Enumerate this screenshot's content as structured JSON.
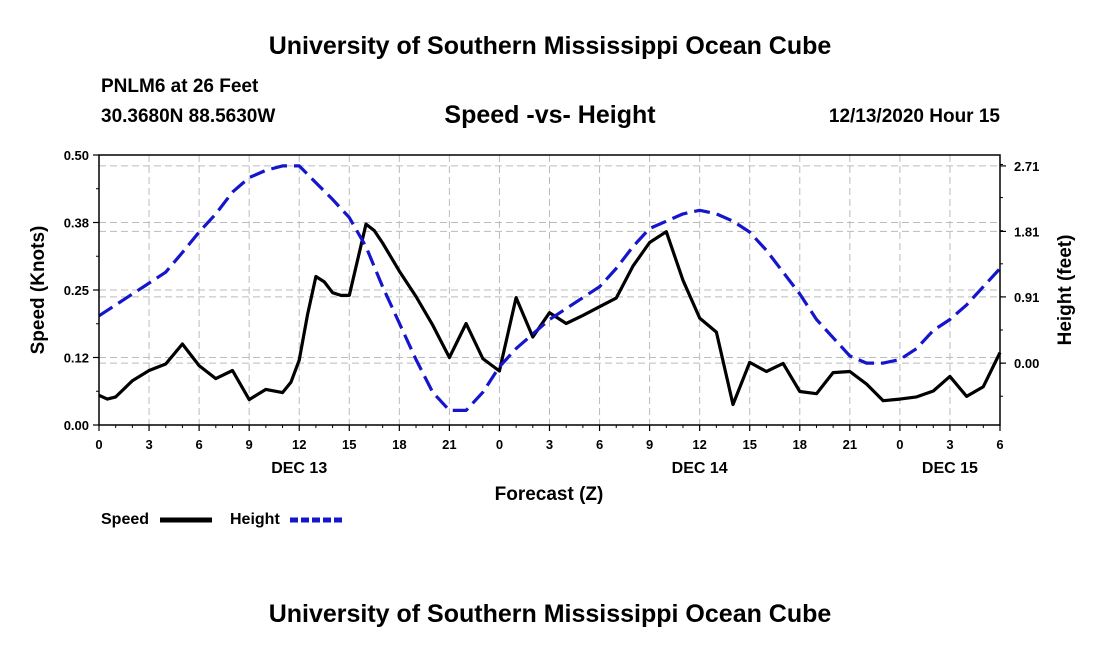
{
  "header": {
    "title_top": "University of Southern Mississippi Ocean Cube",
    "title_bottom": "University of Southern Mississippi Ocean Cube",
    "station_name": "PNLM6 at 26 Feet",
    "station_coords": "30.3680N 88.5630W",
    "chart_title": "Speed -vs- Height",
    "date": "12/13/2020 Hour 15"
  },
  "colors": {
    "speed": "#000000",
    "height": "#1515cc",
    "grid": "#bbbbbb"
  },
  "chart_data": {
    "type": "line",
    "title": "Speed -vs- Height",
    "xlabel": "Forecast (Z)",
    "ylabel": "Speed (Knots)",
    "y2label": "Height (feet)",
    "xlim": [
      0,
      54
    ],
    "ylim": [
      0,
      0.5
    ],
    "y2lim": [
      -0.85,
      2.86
    ],
    "grid": true,
    "x_tick_positions": [
      0,
      3,
      6,
      9,
      12,
      15,
      18,
      21,
      24,
      27,
      30,
      33,
      36,
      39,
      42,
      45,
      48,
      51,
      54
    ],
    "x_tick_labels": [
      "0",
      "3",
      "6",
      "9",
      "12",
      "15",
      "18",
      "21",
      "0",
      "3",
      "6",
      "9",
      "12",
      "15",
      "18",
      "21",
      "0",
      "3",
      "6"
    ],
    "date_labels": [
      {
        "x": 12,
        "label": "DEC 13"
      },
      {
        "x": 36,
        "label": "DEC 14"
      },
      {
        "x": 51,
        "label": "DEC 15"
      }
    ],
    "y_ticks": [
      0,
      0.125,
      0.25,
      0.375,
      0.5
    ],
    "y_tick_labels": [
      "0.00",
      "0.12",
      "0.25",
      "0.38",
      "0.50"
    ],
    "y2_ticks": [
      0,
      0.91,
      1.81,
      2.71
    ],
    "y2_tick_labels": [
      "0.00",
      "0.91",
      "1.81",
      "2.71"
    ],
    "legend": {
      "position": "bottom-left",
      "entries": [
        "Speed",
        "Height"
      ]
    },
    "series": [
      {
        "name": "Speed",
        "axis": "left",
        "style": "solid",
        "x": [
          0,
          0.5,
          1,
          2,
          3,
          4,
          5,
          6,
          7,
          8,
          9,
          10,
          11,
          11.5,
          12,
          12.5,
          13,
          13.5,
          14,
          14.5,
          15,
          16,
          16.5,
          17,
          18,
          19,
          20,
          21,
          22,
          23,
          24,
          25,
          26,
          27,
          28,
          29,
          30,
          31,
          32,
          33,
          34,
          35,
          36,
          37,
          38,
          39,
          40,
          41,
          42,
          43,
          44,
          45,
          46,
          47,
          48,
          49,
          50,
          51,
          52,
          53,
          54
        ],
        "values": [
          0.055,
          0.048,
          0.052,
          0.082,
          0.101,
          0.113,
          0.15,
          0.11,
          0.086,
          0.101,
          0.047,
          0.066,
          0.06,
          0.079,
          0.12,
          0.205,
          0.275,
          0.265,
          0.245,
          0.24,
          0.24,
          0.372,
          0.36,
          0.337,
          0.285,
          0.238,
          0.185,
          0.125,
          0.188,
          0.123,
          0.1,
          0.236,
          0.163,
          0.208,
          0.188,
          0.203,
          0.219,
          0.235,
          0.294,
          0.338,
          0.358,
          0.268,
          0.198,
          0.172,
          0.038,
          0.116,
          0.099,
          0.114,
          0.062,
          0.058,
          0.097,
          0.099,
          0.076,
          0.045,
          0.048,
          0.052,
          0.063,
          0.09,
          0.053,
          0.071,
          0.134
        ]
      },
      {
        "name": "Height",
        "axis": "right",
        "style": "dashed",
        "x": [
          0,
          1,
          2,
          3,
          4,
          5,
          6,
          7,
          8,
          9,
          10,
          11,
          12,
          13,
          14,
          15,
          16,
          17,
          18,
          19,
          20,
          21,
          22,
          23,
          24,
          25,
          26,
          27,
          28,
          29,
          30,
          31,
          32,
          33,
          34,
          35,
          36,
          37,
          38,
          39,
          40,
          41,
          42,
          43,
          44,
          45,
          46,
          47,
          48,
          49,
          50,
          51,
          52,
          53,
          54
        ],
        "values": [
          0.65,
          0.8,
          0.95,
          1.1,
          1.25,
          1.52,
          1.8,
          2.05,
          2.35,
          2.55,
          2.65,
          2.71,
          2.71,
          2.48,
          2.25,
          2.0,
          1.6,
          1.05,
          0.55,
          0.05,
          -0.4,
          -0.65,
          -0.65,
          -0.4,
          -0.05,
          0.2,
          0.4,
          0.6,
          0.75,
          0.9,
          1.05,
          1.3,
          1.6,
          1.85,
          1.95,
          2.05,
          2.1,
          2.05,
          1.95,
          1.8,
          1.55,
          1.25,
          0.95,
          0.6,
          0.35,
          0.1,
          0.0,
          0.0,
          0.05,
          0.2,
          0.45,
          0.6,
          0.8,
          1.05,
          1.3
        ]
      }
    ]
  }
}
